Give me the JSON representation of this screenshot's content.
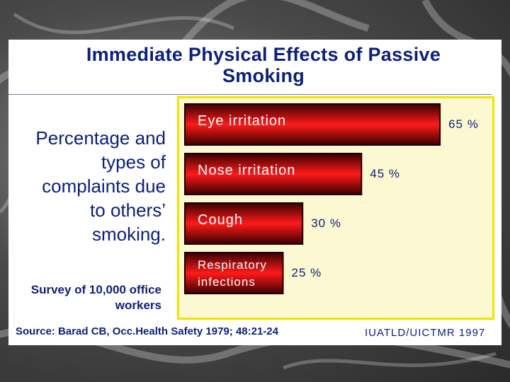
{
  "title": "Immediate Physical Effects of Passive Smoking",
  "description": "Percentage and types of complaints due to others’ smoking.",
  "survey": "Survey of 10,000 office workers",
  "source": "Source: Barad CB, Occ.Health Safety 1979; 48:21-24",
  "credit": "IUATLD/UICTMR 1997",
  "colors": {
    "bar_light": "#ff1a1a",
    "bar_dark": "#3a0000",
    "panel": "#fcf8d2",
    "panel_border": "#f0e400",
    "text": "#0c1f7a"
  },
  "chart_data": {
    "type": "bar",
    "orientation": "horizontal",
    "categories": [
      "Eye irritation",
      "Nose irritation",
      "Cough",
      "Respiratory infections"
    ],
    "values": [
      65,
      45,
      30,
      25
    ],
    "value_labels": [
      "65 %",
      "45 %",
      "30 %",
      "25 %"
    ],
    "unit": "%",
    "xlim": [
      0,
      100
    ],
    "grid": false,
    "legend": "none"
  }
}
